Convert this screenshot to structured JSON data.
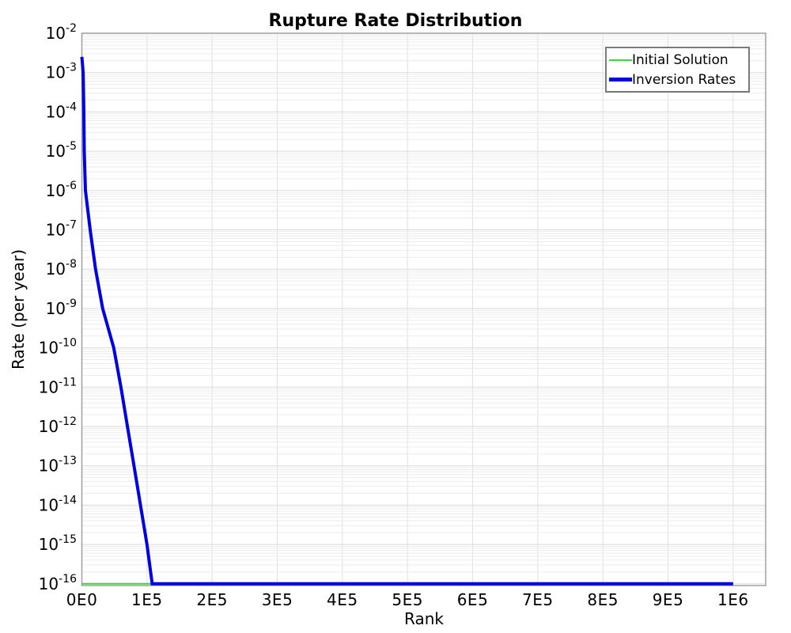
{
  "title": "Rupture Rate Distribution",
  "axes": {
    "x_label": "Rank",
    "y_label": "Rate (per year)"
  },
  "legend": {
    "position": "top-right",
    "items": [
      {
        "label": "Initial Solution",
        "color": "#3cd63c",
        "line_width": 2
      },
      {
        "label": "Inversion Rates",
        "color": "#0000e0",
        "line_width": 5
      }
    ]
  },
  "colors": {
    "background": "#ffffff",
    "frame": "#a0a0a0",
    "grid_minor": "#ececec",
    "grid_major": "#dadada",
    "grid_vertical": "#e0e0e0",
    "initial_solution": "#3cd63c",
    "inversion_rates": "#0000e0",
    "text": "#000000"
  },
  "chart_data": {
    "type": "line",
    "title": "Rupture Rate Distribution",
    "xlabel": "Rank",
    "ylabel": "Rate (per year)",
    "x_scale": "linear",
    "y_scale": "log",
    "xlim": [
      0,
      1050000
    ],
    "ylim": [
      1e-16,
      0.01
    ],
    "grid": true,
    "legend_position": "top-right",
    "x_ticks": [
      {
        "value": 0,
        "label": "0E0"
      },
      {
        "value": 100000,
        "label": "1E5"
      },
      {
        "value": 200000,
        "label": "2E5"
      },
      {
        "value": 300000,
        "label": "3E5"
      },
      {
        "value": 400000,
        "label": "4E5"
      },
      {
        "value": 500000,
        "label": "5E5"
      },
      {
        "value": 600000,
        "label": "6E5"
      },
      {
        "value": 700000,
        "label": "7E5"
      },
      {
        "value": 800000,
        "label": "8E5"
      },
      {
        "value": 900000,
        "label": "9E5"
      },
      {
        "value": 1000000,
        "label": "1E6"
      }
    ],
    "y_tick_exponents": [
      -2,
      -3,
      -4,
      -5,
      -6,
      -7,
      -8,
      -9,
      -10,
      -11,
      -12,
      -13,
      -14,
      -15,
      -16
    ],
    "series": [
      {
        "name": "Initial Solution",
        "color": "#3cd63c",
        "width": 2,
        "x": [
          0,
          1000000
        ],
        "y": [
          1e-16,
          1e-16
        ]
      },
      {
        "name": "Inversion Rates",
        "color": "#0000e0",
        "width": 4,
        "x": [
          0,
          2000,
          3000,
          3700,
          5500,
          12700,
          21000,
          32000,
          49000,
          60000,
          70000,
          80000,
          90000,
          100000,
          108000,
          1000000
        ],
        "y": [
          0.0025,
          0.001,
          0.0001,
          1e-05,
          1e-06,
          1e-07,
          1e-08,
          1e-09,
          1e-10,
          1e-11,
          1e-12,
          1e-13,
          1e-14,
          1e-15,
          1e-16,
          1e-16
        ]
      }
    ]
  }
}
